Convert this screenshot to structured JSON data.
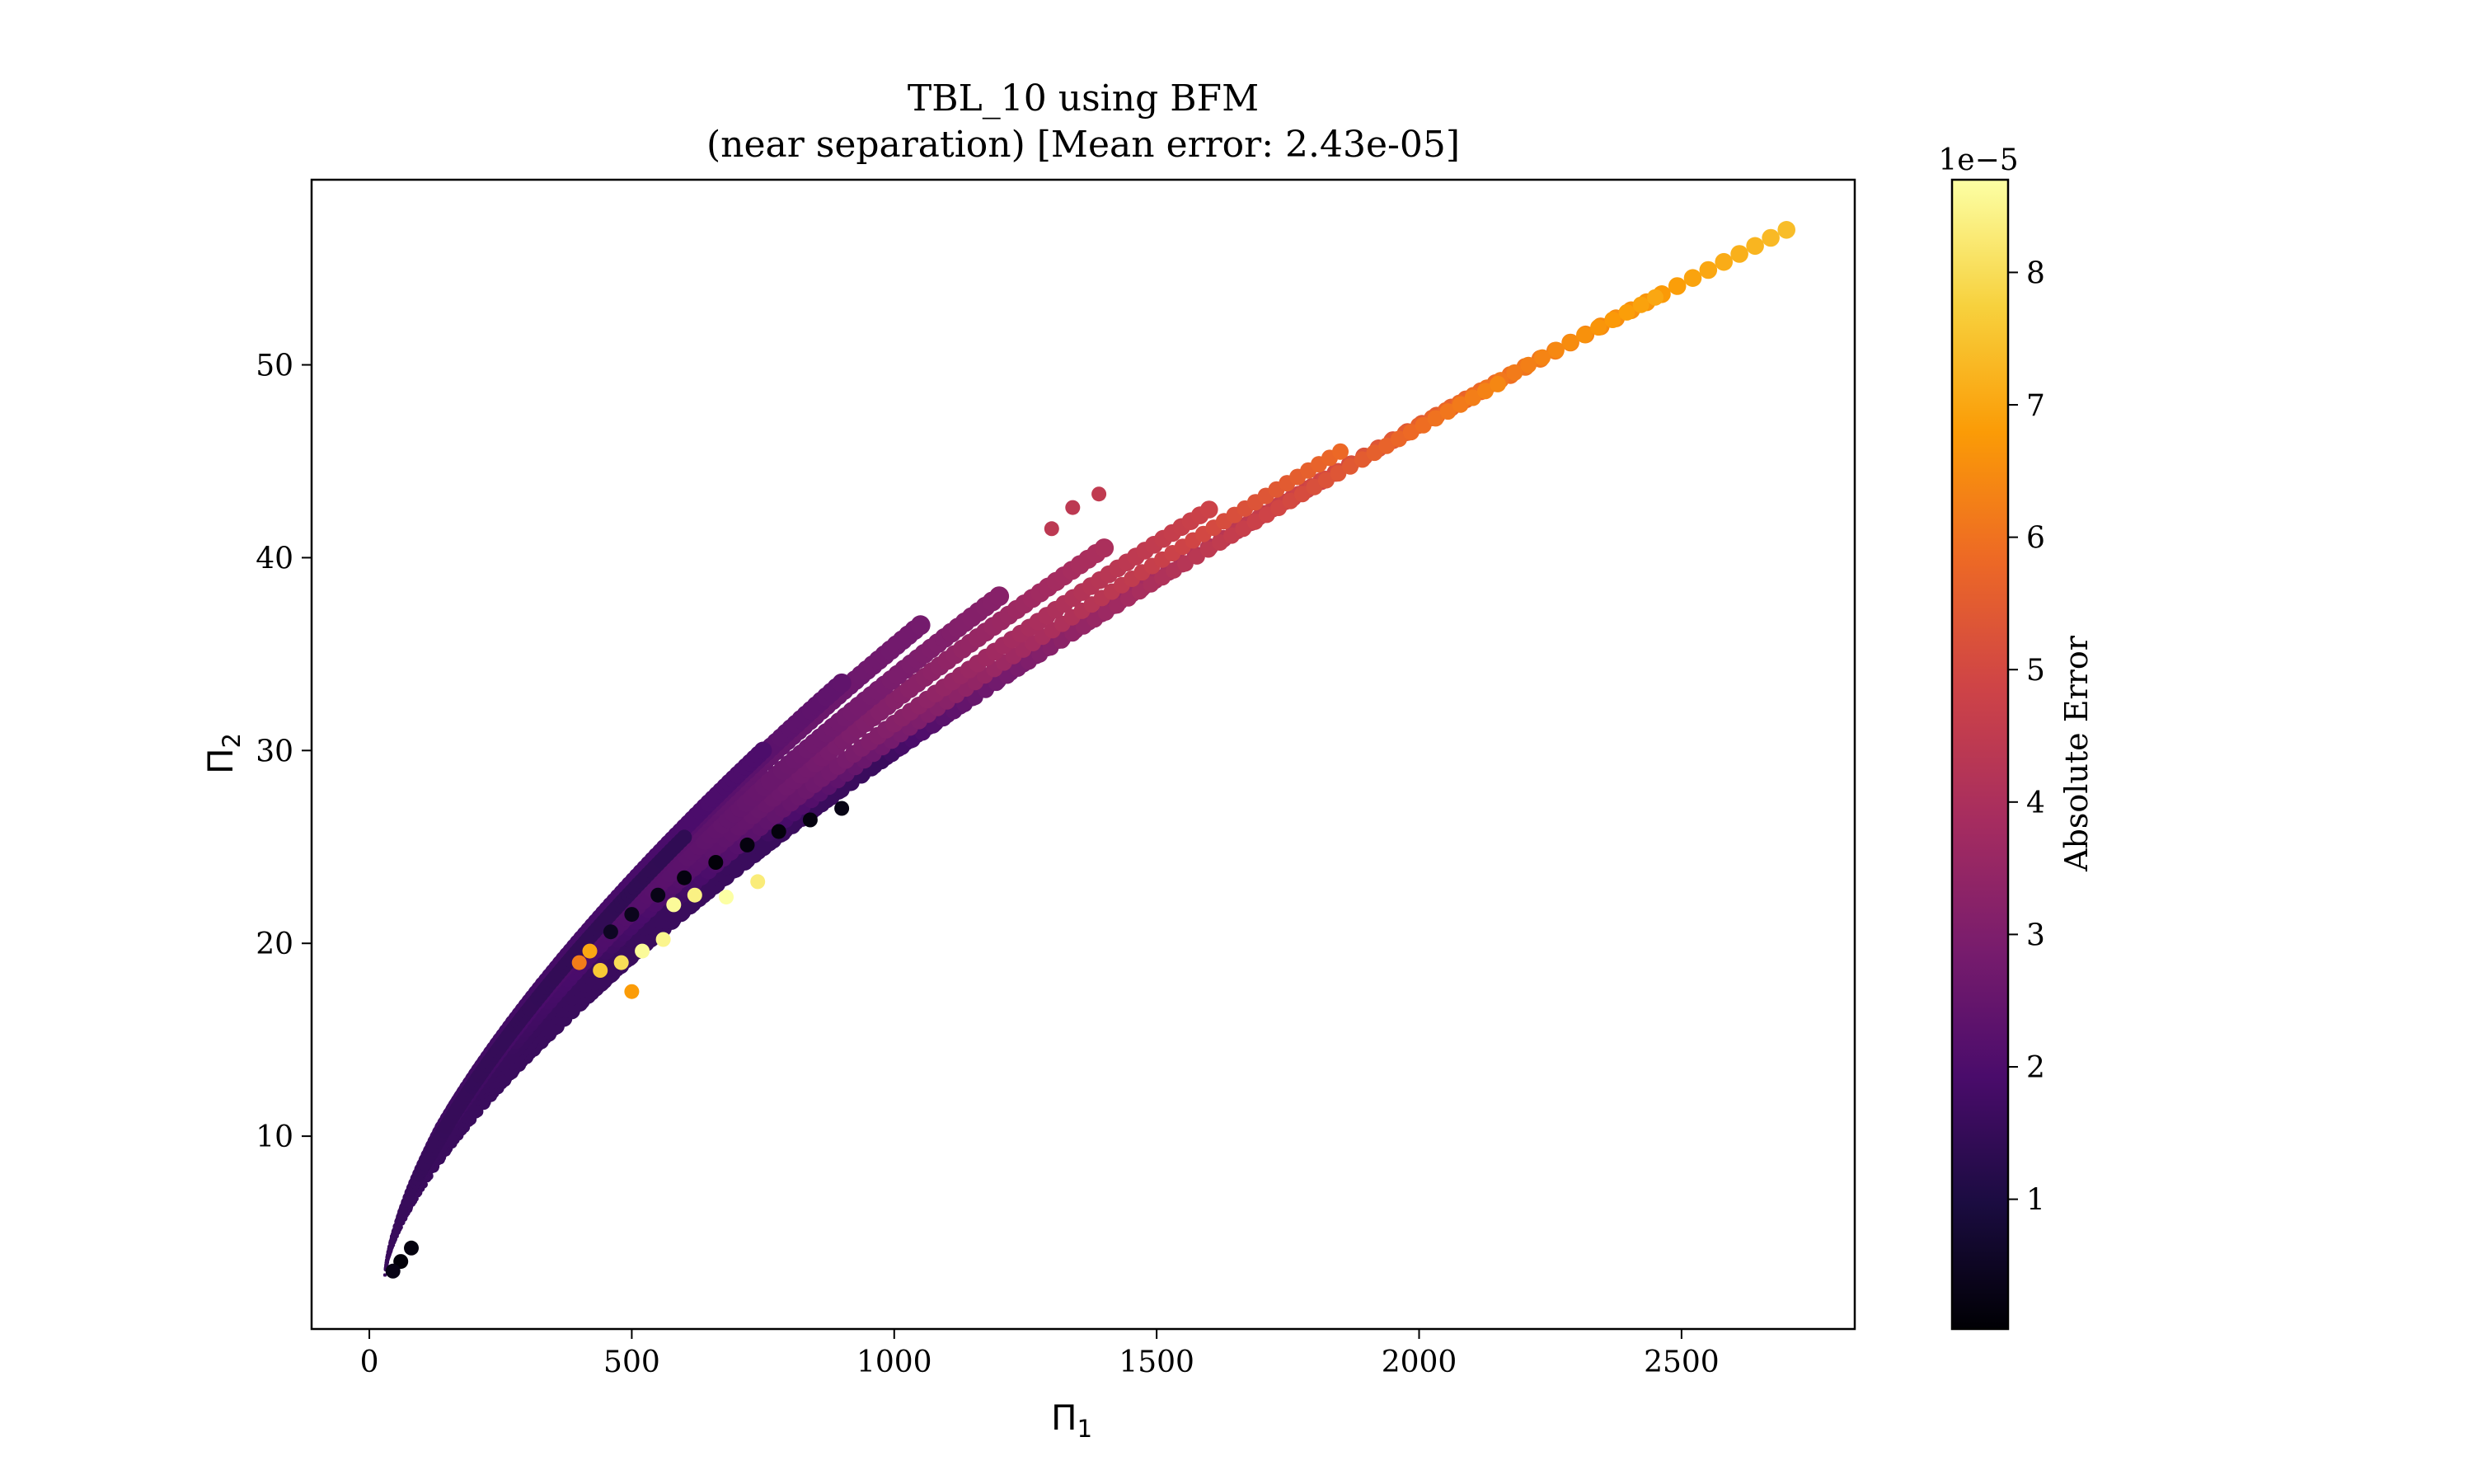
{
  "chart_data": {
    "type": "scatter",
    "title_line1": "TBL_10 using BFM",
    "title_line2": "(near separation) [Mean error: 2.43e-05]",
    "xlabel": "Π",
    "xlabel_sub": "1",
    "ylabel": "Π",
    "ylabel_sub": "2",
    "xlim": [
      -110,
      2830
    ],
    "ylim": [
      0,
      59.6
    ],
    "x_ticks": [
      0,
      500,
      1000,
      1500,
      2000,
      2500
    ],
    "x_tick_labels": [
      "0",
      "500",
      "1000",
      "1500",
      "2000",
      "2500"
    ],
    "y_ticks": [
      10,
      20,
      30,
      40,
      50
    ],
    "y_tick_labels": [
      "10",
      "20",
      "30",
      "40",
      "50"
    ],
    "grid": false,
    "colormap": "inferno",
    "colorbar": {
      "label": "Absolute Error",
      "offset_text": "1e−5",
      "range": [
        0.02,
        8.7
      ],
      "ticks": [
        1,
        2,
        3,
        4,
        5,
        6,
        7,
        8
      ],
      "tick_labels": [
        "1",
        "2",
        "3",
        "4",
        "5",
        "6",
        "7",
        "8"
      ]
    },
    "bands": [
      {
        "x0": 30,
        "y0": 2.8,
        "x1": 2700,
        "y1": 57.0,
        "width": 2.2,
        "error": 7.4,
        "start_frac": 0.45
      },
      {
        "x0": 30,
        "y0": 2.8,
        "x1": 2450,
        "y1": 53.5,
        "width": 2.0,
        "error": 7.0,
        "start_frac": 0.5
      },
      {
        "x0": 30,
        "y0": 2.8,
        "x1": 2150,
        "y1": 49.0,
        "width": 2.0,
        "error": 6.4,
        "start_frac": 0.55
      },
      {
        "x0": 30,
        "y0": 2.8,
        "x1": 1850,
        "y1": 45.5,
        "width": 2.0,
        "error": 5.8,
        "start_frac": 0.5
      },
      {
        "x0": 30,
        "y0": 2.8,
        "x1": 1600,
        "y1": 42.5,
        "width": 2.2,
        "error": 4.8,
        "start_frac": 0.45
      },
      {
        "x0": 30,
        "y0": 2.8,
        "x1": 1400,
        "y1": 40.5,
        "width": 2.4,
        "error": 4.0,
        "start_frac": 0.4
      },
      {
        "x0": 30,
        "y0": 2.8,
        "x1": 1200,
        "y1": 38.0,
        "width": 2.5,
        "error": 3.2,
        "start_frac": 0.3
      },
      {
        "x0": 30,
        "y0": 2.8,
        "x1": 1050,
        "y1": 36.5,
        "width": 2.5,
        "error": 2.8,
        "start_frac": 0.2
      },
      {
        "x0": 30,
        "y0": 2.8,
        "x1": 900,
        "y1": 33.5,
        "width": 2.4,
        "error": 2.4,
        "start_frac": 0.1
      },
      {
        "x0": 30,
        "y0": 2.8,
        "x1": 750,
        "y1": 30.0,
        "width": 2.2,
        "error": 2.0,
        "start_frac": 0.0
      },
      {
        "x0": 30,
        "y0": 2.8,
        "x1": 600,
        "y1": 25.5,
        "width": 1.8,
        "error": 1.4,
        "start_frac": 0.0
      }
    ],
    "features": [
      {
        "x": 900,
        "y": 27.0,
        "error": 0.3
      },
      {
        "x": 840,
        "y": 26.4,
        "error": 0.2
      },
      {
        "x": 780,
        "y": 25.8,
        "error": 0.15
      },
      {
        "x": 720,
        "y": 25.1,
        "error": 0.2
      },
      {
        "x": 660,
        "y": 24.2,
        "error": 0.1
      },
      {
        "x": 600,
        "y": 23.4,
        "error": 0.2
      },
      {
        "x": 550,
        "y": 22.5,
        "error": 0.3
      },
      {
        "x": 500,
        "y": 21.5,
        "error": 0.4
      },
      {
        "x": 460,
        "y": 20.6,
        "error": 0.5
      },
      {
        "x": 580,
        "y": 22.0,
        "error": 8.6
      },
      {
        "x": 620,
        "y": 22.5,
        "error": 8.4
      },
      {
        "x": 680,
        "y": 22.4,
        "error": 8.7
      },
      {
        "x": 740,
        "y": 23.2,
        "error": 8.3
      },
      {
        "x": 520,
        "y": 19.6,
        "error": 8.6
      },
      {
        "x": 480,
        "y": 19.0,
        "error": 8.0
      },
      {
        "x": 440,
        "y": 18.6,
        "error": 7.6
      },
      {
        "x": 560,
        "y": 20.2,
        "error": 8.5
      },
      {
        "x": 420,
        "y": 19.6,
        "error": 7.0
      },
      {
        "x": 400,
        "y": 19.0,
        "error": 6.2
      },
      {
        "x": 500,
        "y": 17.5,
        "error": 6.8
      },
      {
        "x": 60,
        "y": 3.5,
        "error": 0.1
      },
      {
        "x": 80,
        "y": 4.2,
        "error": 0.2
      },
      {
        "x": 45,
        "y": 3.0,
        "error": 0.3
      },
      {
        "x": 1300,
        "y": 41.5,
        "error": 4.4
      },
      {
        "x": 1340,
        "y": 42.6,
        "error": 4.4
      },
      {
        "x": 1390,
        "y": 43.3,
        "error": 4.5
      }
    ]
  }
}
